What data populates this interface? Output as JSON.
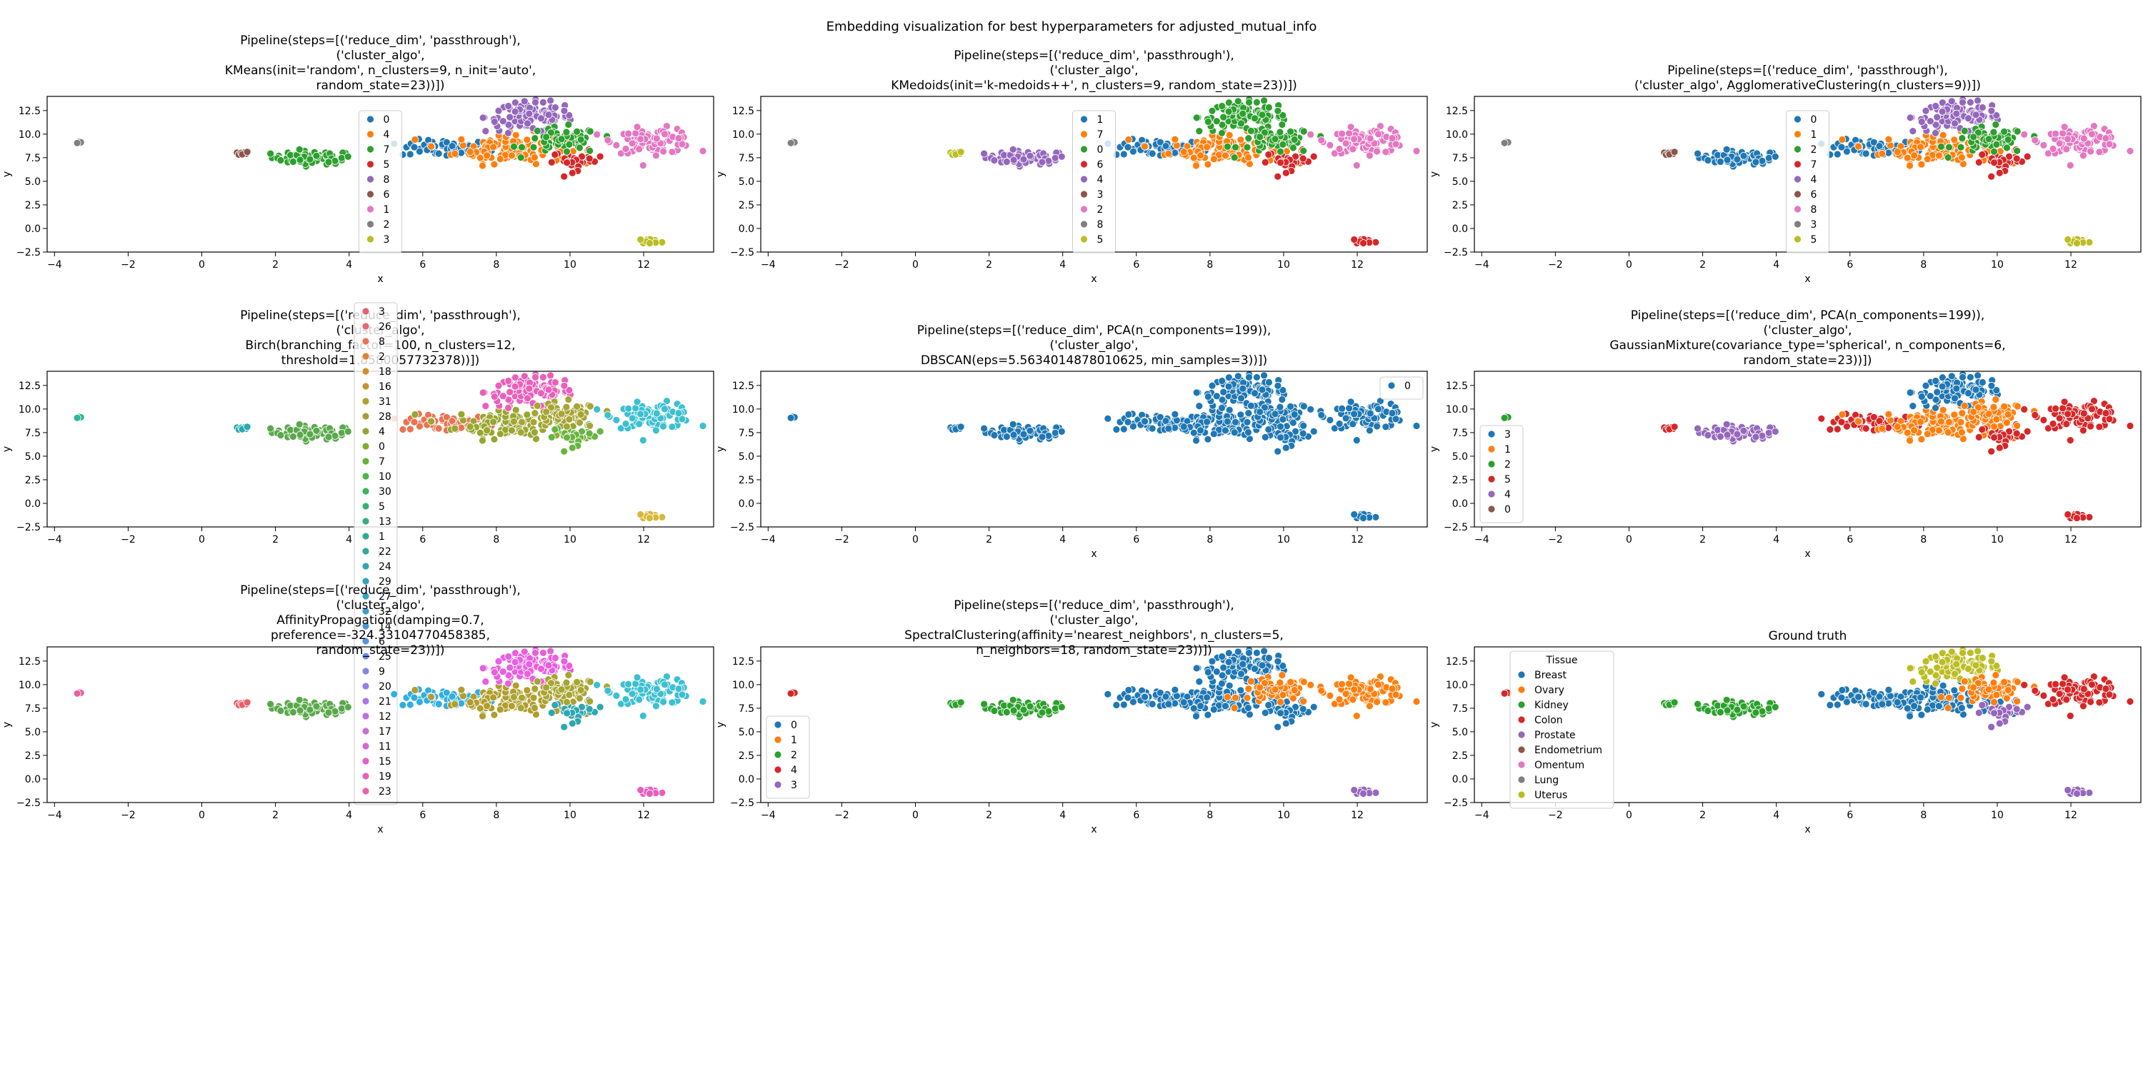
{
  "figure": {
    "suptitle": "Embedding visualization for best hyperparameters for adjusted_mutual_info"
  },
  "colors": {
    "palette10": [
      "#1f77b4",
      "#ff7f0e",
      "#2ca02c",
      "#d62728",
      "#9467bd",
      "#8c564b",
      "#e377c2",
      "#7f7f7f",
      "#bcbd22",
      "#17becf"
    ]
  },
  "chart_data": [
    {
      "type": "scatter",
      "title": [
        "Pipeline(steps=[('reduce_dim', 'passthrough'),",
        "('cluster_algo',",
        "KMeans(init='random', n_clusters=9, n_init='auto',",
        "random_state=23))])"
      ],
      "xlabel": "x",
      "ylabel": "y",
      "xlim": [
        -4.2,
        13.9
      ],
      "ylim": [
        -2.5,
        14.0
      ],
      "xticks": [
        "−4",
        "−2",
        "0",
        "2",
        "4",
        "6",
        "8",
        "10",
        "12"
      ],
      "yticks": [
        "−2.5",
        "0.0",
        "2.5",
        "5.0",
        "7.5",
        "10.0",
        "12.5"
      ],
      "legend_title": "",
      "legend_position": "upper-center",
      "legend_labels": [
        "0",
        "4",
        "7",
        "5",
        "8",
        "6",
        "1",
        "2",
        "3"
      ],
      "legend_color_index": [
        0,
        1,
        2,
        3,
        4,
        5,
        6,
        7,
        8
      ],
      "series_map": [
        7,
        5,
        2,
        0,
        1,
        3,
        4,
        2,
        6,
        8
      ]
    },
    {
      "type": "scatter",
      "title": [
        "Pipeline(steps=[('reduce_dim', 'passthrough'),",
        "('cluster_algo',",
        "KMedoids(init='k-medoids++', n_clusters=9, random_state=23))])"
      ],
      "xlabel": "x",
      "ylabel": "y",
      "xlim": [
        -4.2,
        13.9
      ],
      "ylim": [
        -2.5,
        14.0
      ],
      "xticks": [
        "−4",
        "−2",
        "0",
        "2",
        "4",
        "6",
        "8",
        "10",
        "12"
      ],
      "yticks": [
        "−2.5",
        "0.0",
        "2.5",
        "5.0",
        "7.5",
        "10.0",
        "12.5"
      ],
      "legend_title": "",
      "legend_position": "upper-center",
      "legend_labels": [
        "1",
        "7",
        "0",
        "6",
        "4",
        "3",
        "2",
        "8",
        "5"
      ],
      "legend_color_index": [
        0,
        1,
        2,
        3,
        4,
        5,
        6,
        7,
        8
      ],
      "series_map": [
        7,
        8,
        4,
        0,
        1,
        3,
        2,
        2,
        6,
        3
      ]
    },
    {
      "type": "scatter",
      "title": [
        "Pipeline(steps=[('reduce_dim', 'passthrough'),",
        "('cluster_algo', AgglomerativeClustering(n_clusters=9))])"
      ],
      "xlabel": "x",
      "ylabel": "y",
      "xlim": [
        -4.2,
        13.9
      ],
      "ylim": [
        -2.5,
        14.0
      ],
      "xticks": [
        "−4",
        "−2",
        "0",
        "2",
        "4",
        "6",
        "8",
        "10",
        "12"
      ],
      "yticks": [
        "−2.5",
        "0.0",
        "2.5",
        "5.0",
        "7.5",
        "10.0",
        "12.5"
      ],
      "legend_title": "",
      "legend_position": "upper-center",
      "legend_labels": [
        "0",
        "1",
        "2",
        "7",
        "4",
        "6",
        "8",
        "3",
        "5"
      ],
      "legend_color_index": [
        0,
        1,
        2,
        3,
        4,
        5,
        6,
        7,
        8
      ],
      "series_map": [
        7,
        5,
        0,
        0,
        1,
        3,
        4,
        2,
        6,
        8
      ]
    },
    {
      "type": "scatter",
      "title": [
        "Pipeline(steps=[('reduce_dim', 'passthrough'),",
        "('cluster_algo',",
        "Birch(branching_factor=100, n_clusters=12,",
        "threshold=1.8580057732378))])"
      ],
      "xlabel": "x",
      "ylabel": "y",
      "xlim": [
        -4.2,
        13.9
      ],
      "ylim": [
        -2.5,
        14.0
      ],
      "xticks": [
        "−4",
        "−2",
        "0",
        "2",
        "4",
        "6",
        "8",
        "10",
        "12"
      ],
      "yticks": [
        "−2.5",
        "0.0",
        "2.5",
        "5.0",
        "7.5",
        "10.0",
        "12.5"
      ],
      "legend_title": "",
      "legend_position": "overflow-tall",
      "legend_labels": [
        "3",
        "26",
        "8",
        "2",
        "18",
        "16",
        "31",
        "28",
        "4",
        "0",
        "7",
        "10",
        "30",
        "5",
        "13",
        "1",
        "22",
        "24",
        "29",
        "27",
        "32",
        "14",
        "6",
        "25",
        "9",
        "20",
        "21",
        "12",
        "17",
        "11",
        "15",
        "19",
        "23"
      ],
      "legend_colors": [
        "#e8606a",
        "#e8686f",
        "#e97451",
        "#e0812f",
        "#d18d2b",
        "#c1962e",
        "#b29d2d",
        "#a2a22f",
        "#92a732",
        "#7fad33",
        "#66b13a",
        "#4db548",
        "#3bb45e",
        "#36b173",
        "#33ae84",
        "#31ac93",
        "#30a9a0",
        "#31a7ac",
        "#33a4b8",
        "#38a1c4",
        "#3f9dcf",
        "#4a98d8",
        "#5b92df",
        "#6f8be3",
        "#8484e5",
        "#977de6",
        "#a977e3",
        "#ba71df",
        "#ca6cda",
        "#d866d3",
        "#e262c8",
        "#e95fbb",
        "#ec5fad"
      ],
      "series_map": [
        "#2fb59a",
        "#2aaab0",
        "#5aa84b",
        "#e97451",
        "#99a62f",
        "#67b541",
        "#e95fbb",
        "#a7a533",
        "#3bc0d0",
        "#d8b83a"
      ]
    },
    {
      "type": "scatter",
      "title": [
        "Pipeline(steps=[('reduce_dim', PCA(n_components=199)),",
        "('cluster_algo',",
        "DBSCAN(eps=5.5634014878010625, min_samples=3))])"
      ],
      "xlabel": "x",
      "ylabel": "y",
      "xlim": [
        -4.2,
        13.9
      ],
      "ylim": [
        -2.5,
        14.0
      ],
      "xticks": [
        "−4",
        "−2",
        "0",
        "2",
        "4",
        "6",
        "8",
        "10",
        "12"
      ],
      "yticks": [
        "−2.5",
        "0.0",
        "2.5",
        "5.0",
        "7.5",
        "10.0",
        "12.5"
      ],
      "legend_title": "",
      "legend_position": "upper-right",
      "legend_labels": [
        "0"
      ],
      "legend_color_index": [
        0
      ],
      "series_map": [
        0,
        0,
        0,
        0,
        0,
        0,
        0,
        0,
        0,
        0
      ]
    },
    {
      "type": "scatter",
      "title": [
        "Pipeline(steps=[('reduce_dim', PCA(n_components=199)),",
        "('cluster_algo',",
        "GaussianMixture(covariance_type='spherical', n_components=6,",
        "random_state=23))])"
      ],
      "xlabel": "x",
      "ylabel": "y",
      "xlim": [
        -4.2,
        13.9
      ],
      "ylim": [
        -2.5,
        14.0
      ],
      "xticks": [
        "−4",
        "−2",
        "0",
        "2",
        "4",
        "6",
        "8",
        "10",
        "12"
      ],
      "yticks": [
        "−2.5",
        "0.0",
        "2.5",
        "5.0",
        "7.5",
        "10.0",
        "12.5"
      ],
      "legend_title": "",
      "legend_position": "lower-left",
      "legend_labels": [
        "3",
        "1",
        "2",
        "5",
        "4",
        "0"
      ],
      "legend_color_index": [
        0,
        1,
        2,
        3,
        4,
        5
      ],
      "series_map": [
        2,
        3,
        4,
        3,
        1,
        3,
        0,
        1,
        3,
        3
      ]
    },
    {
      "type": "scatter",
      "title": [
        "Pipeline(steps=[('reduce_dim', 'passthrough'),",
        "('cluster_algo',",
        "AffinityPropagation(damping=0.7,",
        "preference=-324.33104770458385,",
        "random_state=23))])"
      ],
      "xlabel": "x",
      "ylabel": "y",
      "xlim": [
        -4.2,
        13.9
      ],
      "ylim": [
        -2.5,
        14.0
      ],
      "xticks": [
        "−4",
        "−2",
        "0",
        "2",
        "4",
        "6",
        "8",
        "10",
        "12"
      ],
      "yticks": [
        "−2.5",
        "0.0",
        "2.5",
        "5.0",
        "7.5",
        "10.0",
        "12.5"
      ],
      "legend_title": "",
      "legend_position": "none",
      "legend_labels": [],
      "legend_color_index": [],
      "series_map": [
        "#ec5f9e",
        "#e8606a",
        "#5aa84b",
        "#31aee0",
        "#b29d2d",
        "#2fa7b3",
        "#e95fe0",
        "#a7a533",
        "#3bc0d0",
        "#e65fbf"
      ]
    },
    {
      "type": "scatter",
      "title": [
        "Pipeline(steps=[('reduce_dim', 'passthrough'),",
        "('cluster_algo',",
        "SpectralClustering(affinity='nearest_neighbors', n_clusters=5,",
        "n_neighbors=18, random_state=23))])"
      ],
      "xlabel": "x",
      "ylabel": "y",
      "xlim": [
        -4.2,
        13.9
      ],
      "ylim": [
        -2.5,
        14.0
      ],
      "xticks": [
        "−4",
        "−2",
        "0",
        "2",
        "4",
        "6",
        "8",
        "10",
        "12"
      ],
      "yticks": [
        "−2.5",
        "0.0",
        "2.5",
        "5.0",
        "7.5",
        "10.0",
        "12.5"
      ],
      "legend_title": "",
      "legend_position": "lower-left",
      "legend_labels": [
        "0",
        "1",
        "2",
        "4",
        "3"
      ],
      "legend_color_index": [
        0,
        1,
        2,
        3,
        4
      ],
      "series_map": [
        3,
        2,
        2,
        0,
        0,
        0,
        0,
        1,
        1,
        4
      ]
    },
    {
      "type": "scatter",
      "title": [
        "Ground truth"
      ],
      "xlabel": "x",
      "ylabel": "y",
      "xlim": [
        -4.2,
        13.9
      ],
      "ylim": [
        -2.5,
        14.0
      ],
      "xticks": [
        "−4",
        "−2",
        "0",
        "2",
        "4",
        "6",
        "8",
        "10",
        "12"
      ],
      "yticks": [
        "−2.5",
        "0.0",
        "2.5",
        "5.0",
        "7.5",
        "10.0",
        "12.5"
      ],
      "legend_title": "Tissue",
      "legend_position": "upper-left",
      "legend_labels": [
        "Breast",
        "Ovary",
        "Kidney",
        "Colon",
        "Prostate",
        "Endometrium",
        "Omentum",
        "Lung",
        "Uterus"
      ],
      "legend_color_index": [
        0,
        1,
        2,
        3,
        4,
        5,
        6,
        7,
        8
      ],
      "series_map": [
        3,
        2,
        2,
        0,
        0,
        4,
        8,
        1,
        3,
        4
      ]
    }
  ]
}
